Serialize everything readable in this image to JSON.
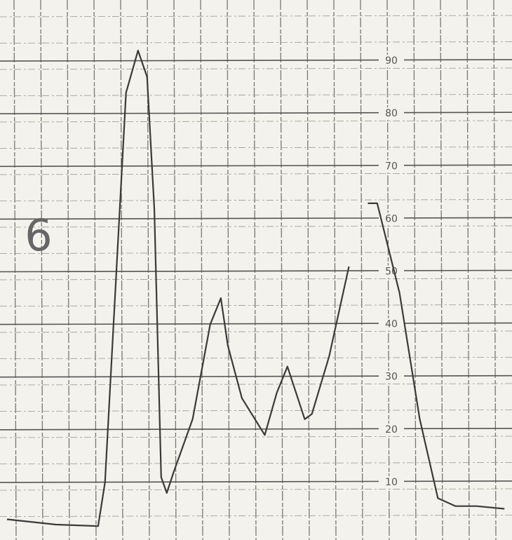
{
  "chart_data": {
    "type": "line",
    "annotation": "6",
    "x": [
      0,
      1.84,
      3.42,
      3.68,
      4.47,
      4.92,
      5.26,
      5.53,
      5.79,
      6.0,
      6.26,
      6.97,
      7.63,
      8.03,
      8.29,
      8.82,
      9.68,
      10.13,
      10.53,
      11.18,
      11.45,
      12.1,
      12.84,
      13.2,
      13.55,
      13.9,
      14.74,
      15.5,
      16.18,
      16.84,
      17.63,
      18.68
    ],
    "values": [
      3,
      2,
      1.7,
      10,
      84,
      92,
      87,
      62,
      11,
      8,
      12,
      22,
      40,
      45,
      36,
      26,
      19,
      27,
      32,
      22,
      23,
      34,
      51,
      null,
      63,
      63,
      46,
      22,
      7,
      5.5,
      5.5,
      5
    ],
    "color": "#3a3a3a",
    "xlim": [
      0,
      18.7
    ],
    "ylim": [
      0,
      100
    ],
    "yticks": [
      10,
      20,
      30,
      40,
      50,
      60,
      70,
      80,
      90
    ],
    "grid": true
  }
}
